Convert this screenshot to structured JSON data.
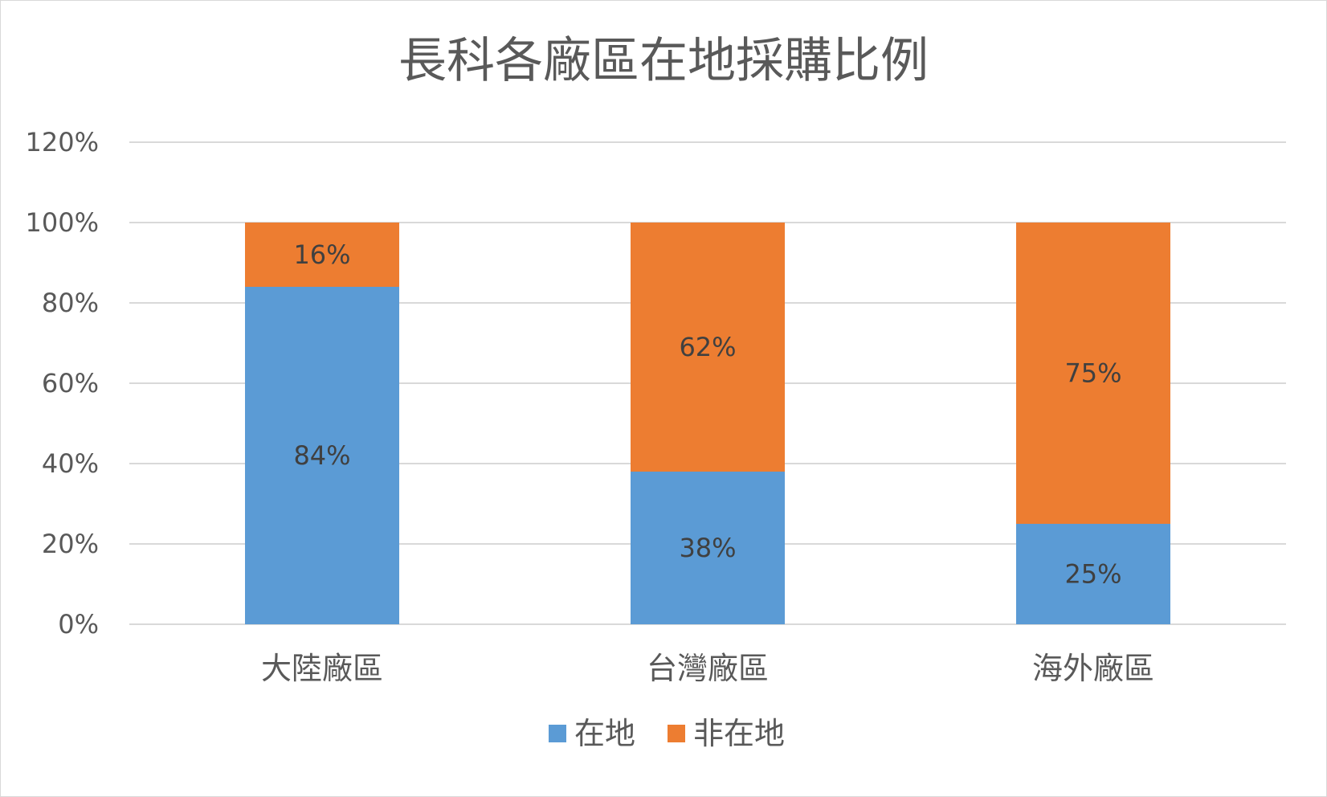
{
  "chart_data": {
    "type": "bar",
    "stacked": true,
    "title": "長科各廠區在地採購比例",
    "categories": [
      "大陸廠區",
      "台灣廠區",
      "海外廠區"
    ],
    "series": [
      {
        "name": "在地",
        "color": "#5b9bd5",
        "values": [
          84,
          38,
          25
        ],
        "labels": [
          "84%",
          "38%",
          "25%"
        ]
      },
      {
        "name": "非在地",
        "color": "#ed7d31",
        "values": [
          16,
          62,
          75
        ],
        "labels": [
          "16%",
          "62%",
          "75%"
        ]
      }
    ],
    "ylim": [
      0,
      120
    ],
    "yticks": [
      "0%",
      "20%",
      "40%",
      "60%",
      "80%",
      "100%",
      "120%"
    ],
    "grid": true,
    "legend_position": "bottom"
  }
}
